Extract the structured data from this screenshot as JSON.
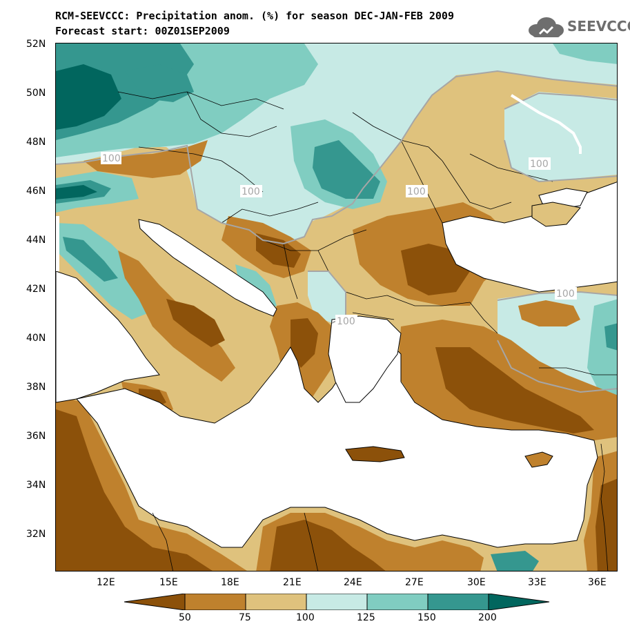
{
  "header": {
    "title": "RCM-SEEVCCC: Precipitation anom. (%) for season DEC-JAN-FEB 2009",
    "forecast": "Forecast start: 00Z01SEP2009",
    "logo_text": "SEEVCCC"
  },
  "map": {
    "lat_labels": [
      "52N",
      "50N",
      "48N",
      "46N",
      "44N",
      "42N",
      "40N",
      "38N",
      "36N",
      "34N",
      "32N"
    ],
    "lon_labels": [
      "12E",
      "15E",
      "18E",
      "21E",
      "24E",
      "27E",
      "30E",
      "33E",
      "36E"
    ],
    "contour_labels": [
      "100",
      "100",
      "100",
      "100",
      "100",
      "100"
    ],
    "colors": {
      "lt50": "#8c510a",
      "50_75": "#bf812d",
      "75_100": "#dfc27d",
      "100_125": "#c7eae5",
      "125_150": "#80cdc1",
      "150_200": "#35978f",
      "gt200": "#01665e",
      "sea": "#ffffff",
      "contour": "#a6a6a6"
    }
  },
  "colorbar": {
    "labels": [
      "50",
      "75",
      "100",
      "125",
      "150",
      "200"
    ],
    "colors": [
      "#8c510a",
      "#bf812d",
      "#dfc27d",
      "#c7eae5",
      "#80cdc1",
      "#35978f",
      "#01665e"
    ]
  }
}
